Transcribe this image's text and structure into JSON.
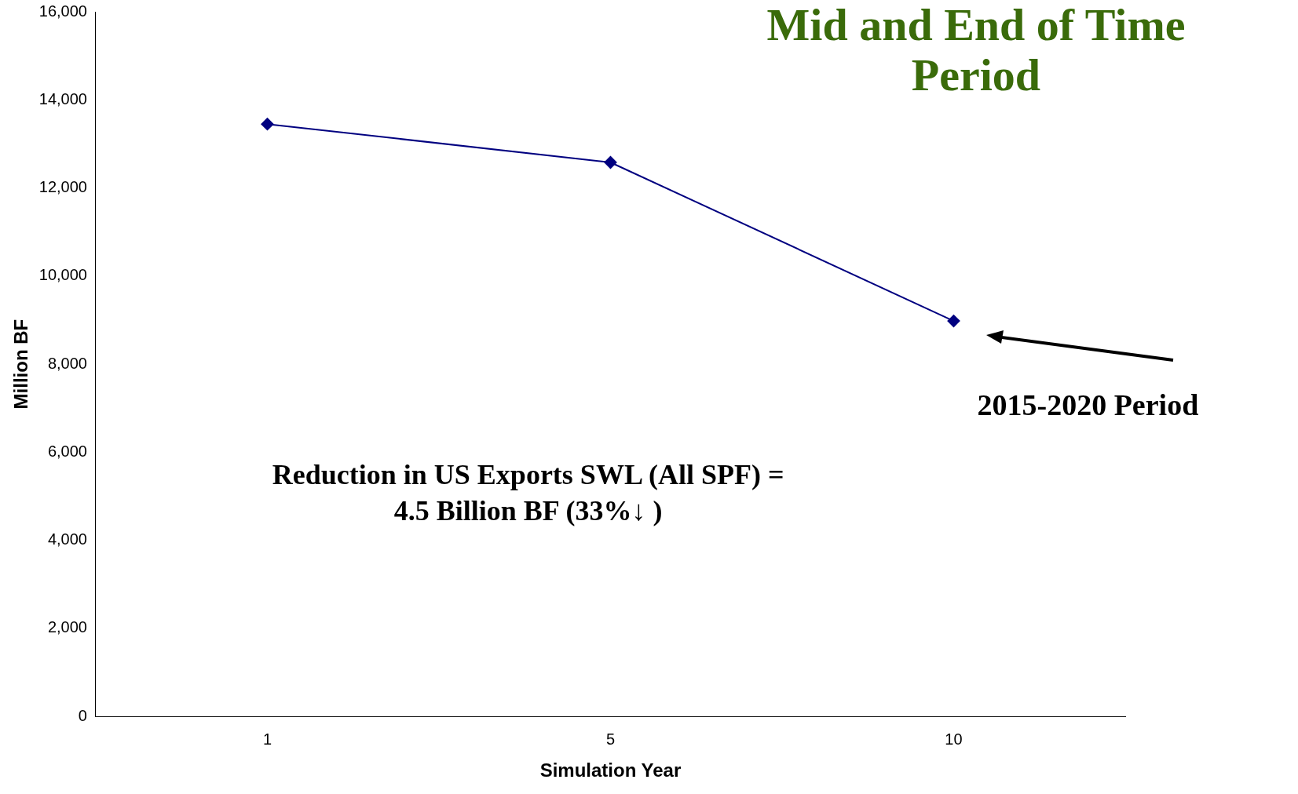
{
  "chart_data": {
    "type": "line",
    "title": "Mid and End of Time Period",
    "xlabel": "Simulation Year",
    "ylabel": "Million BF",
    "categories": [
      "1",
      "5",
      "10"
    ],
    "series": [
      {
        "color": "#000080",
        "values": [
          13450,
          12580,
          8980
        ]
      }
    ],
    "ylim": [
      0,
      16000
    ],
    "yticks": [
      {
        "value": 0,
        "label": "0"
      },
      {
        "value": 2000,
        "label": "2,000"
      },
      {
        "value": 4000,
        "label": "4,000"
      },
      {
        "value": 6000,
        "label": "6,000"
      },
      {
        "value": 8000,
        "label": "8,000"
      },
      {
        "value": 10000,
        "label": "10,000"
      },
      {
        "value": 12000,
        "label": "12,000"
      },
      {
        "value": 14000,
        "label": "14,000"
      },
      {
        "value": 16000,
        "label": "16,000"
      }
    ],
    "grid": false,
    "legend": false,
    "marker": "diamond",
    "line_style": "solid",
    "annotations": [
      {
        "text": "2015-2020 Period",
        "x": "10",
        "y": 8980
      },
      "Reduction in US Exports SWL (All SPF) = 4.5 Billion BF (33%↓ )"
    ]
  }
}
